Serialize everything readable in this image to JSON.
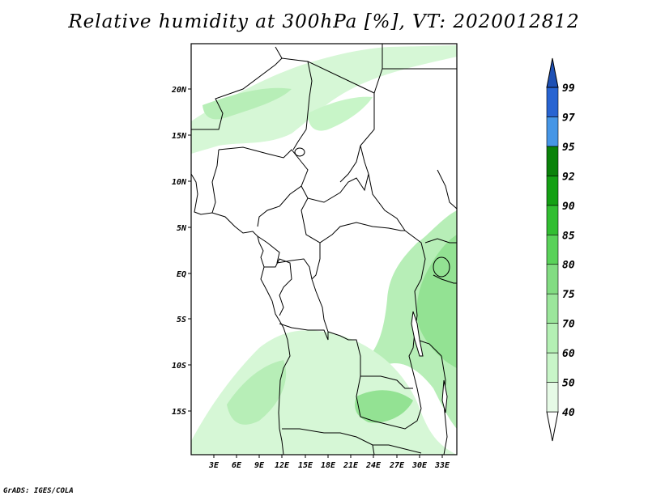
{
  "title": "Relative humidity at 300hPa [%], VT: 2020012812",
  "footer": "GrADS: IGES/COLA",
  "map": {
    "lat_ticks": [
      "20N",
      "15N",
      "10N",
      "5N",
      "EQ",
      "5S",
      "10S",
      "15S"
    ],
    "lon_ticks": [
      "3E",
      "6E",
      "9E",
      "12E",
      "15E",
      "18E",
      "21E",
      "24E",
      "27E",
      "30E",
      "33E"
    ]
  },
  "colorbar": {
    "labels": [
      "40",
      "50",
      "60",
      "70",
      "75",
      "80",
      "85",
      "90",
      "92",
      "95",
      "97",
      "99"
    ],
    "colors": [
      "#ffffff",
      "#e6fae6",
      "#c8f5c8",
      "#b4f0b4",
      "#9be69b",
      "#82dc82",
      "#5ad25a",
      "#32be32",
      "#14a014",
      "#0a820a",
      "#4696e6",
      "#2864d2",
      "#1e50b4"
    ]
  },
  "legend_colors": {
    "land_light": "#d6f7d6",
    "land_mid": "#b7eeb7",
    "land_strong": "#93e293"
  }
}
